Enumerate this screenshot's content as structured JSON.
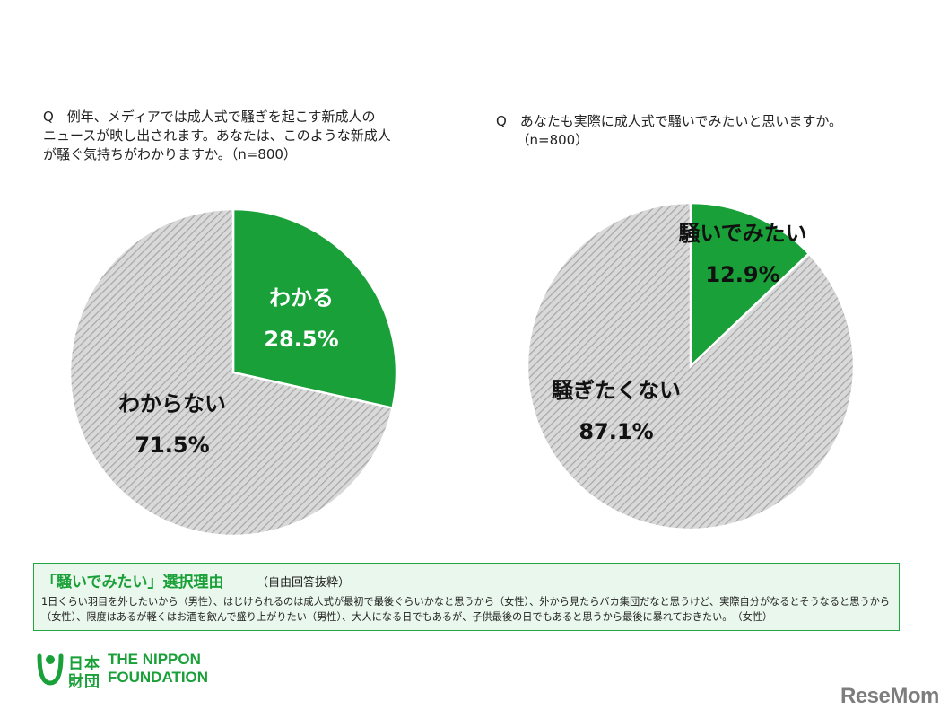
{
  "question_left": "Q　例年、メディアでは成人式で騒ぎを起こす新成人の\nニュースが映し出されます。あなたは、このような新成人\nが騒ぐ気持ちがわかりますか。（n=800）",
  "question_right": "Q　あなたも実際に成人式で騒いでみたいと思いますか。\n　　（n=800）",
  "chart_data": [
    {
      "type": "pie",
      "categories": [
        "わかる",
        "わからない"
      ],
      "values": [
        28.5,
        71.5
      ],
      "labels": [
        "28.5%",
        "71.5%"
      ],
      "colors": [
        "#19a038",
        "hatched-gray"
      ]
    },
    {
      "type": "pie",
      "categories": [
        "騒いでみたい",
        "騒ぎたくない"
      ],
      "values": [
        12.9,
        87.1
      ],
      "labels": [
        "12.9%",
        "87.1%"
      ],
      "colors": [
        "#19a038",
        "hatched-gray"
      ]
    }
  ],
  "reasons": {
    "title": "「騒いでみたい」選択理由",
    "subtitle": "（自由回答抜粋）",
    "body": "1日くらい羽目を外したいから（男性）、はじけられるのは成人式が最初で最後ぐらいかなと思うから（女性）、外から見たらバカ集団だなと思うけど、実際自分がなるとそうなると思うから（女性）、限度はあるが軽くはお酒を飲んで盛り上がりたい（男性）、大人になる日でもあるが、子供最後の日でもあると思うから最後に暴れておきたい。　（女性）"
  },
  "logo": {
    "kanji_top": "日本",
    "kanji_bottom": "財団",
    "en_top": "THE NIPPON",
    "en_bottom": "FOUNDATION"
  },
  "watermark": "ReseMom",
  "colors": {
    "accent": "#19a038",
    "box_bg": "#eaf7ec",
    "hatch_bg": "#d9d9d9",
    "hatch_line": "#a6a6a6"
  }
}
